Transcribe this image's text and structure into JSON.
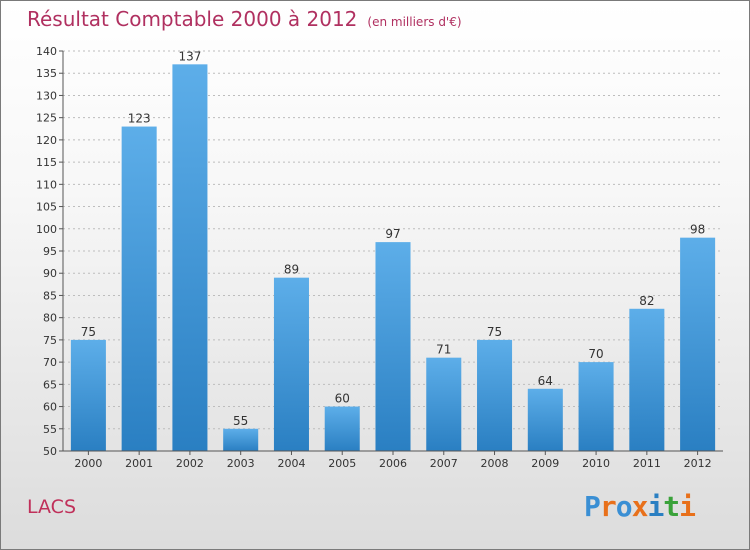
{
  "header": {
    "title": "Résultat Comptable 2000 à 2012",
    "subtitle": "(en milliers d'€)"
  },
  "footer": {
    "city": "LACS",
    "logo_text": "Proxiti"
  },
  "colors": {
    "title": "#b03060",
    "bar_light": "#5daee9",
    "bar_dark": "#2a7fc2",
    "logo": [
      "#3a8fd4",
      "#e8701a",
      "#3a8fd4",
      "#e8701a",
      "#2a7fc2",
      "#3aa23a",
      "#e8701a"
    ]
  },
  "chart_data": {
    "type": "bar",
    "title": "Résultat Comptable 2000 à 2012",
    "subtitle": "(en milliers d'€)",
    "categories": [
      "2000",
      "2001",
      "2002",
      "2003",
      "2004",
      "2005",
      "2006",
      "2007",
      "2008",
      "2009",
      "2010",
      "2011",
      "2012"
    ],
    "values": [
      75,
      123,
      137,
      55,
      89,
      60,
      97,
      71,
      75,
      64,
      70,
      82,
      98
    ],
    "ylim": [
      50,
      140
    ],
    "yticks": [
      50,
      55,
      60,
      65,
      70,
      75,
      80,
      85,
      90,
      95,
      100,
      105,
      110,
      115,
      120,
      125,
      130,
      135,
      140
    ],
    "xlabel": "",
    "ylabel": "",
    "grid": true
  }
}
